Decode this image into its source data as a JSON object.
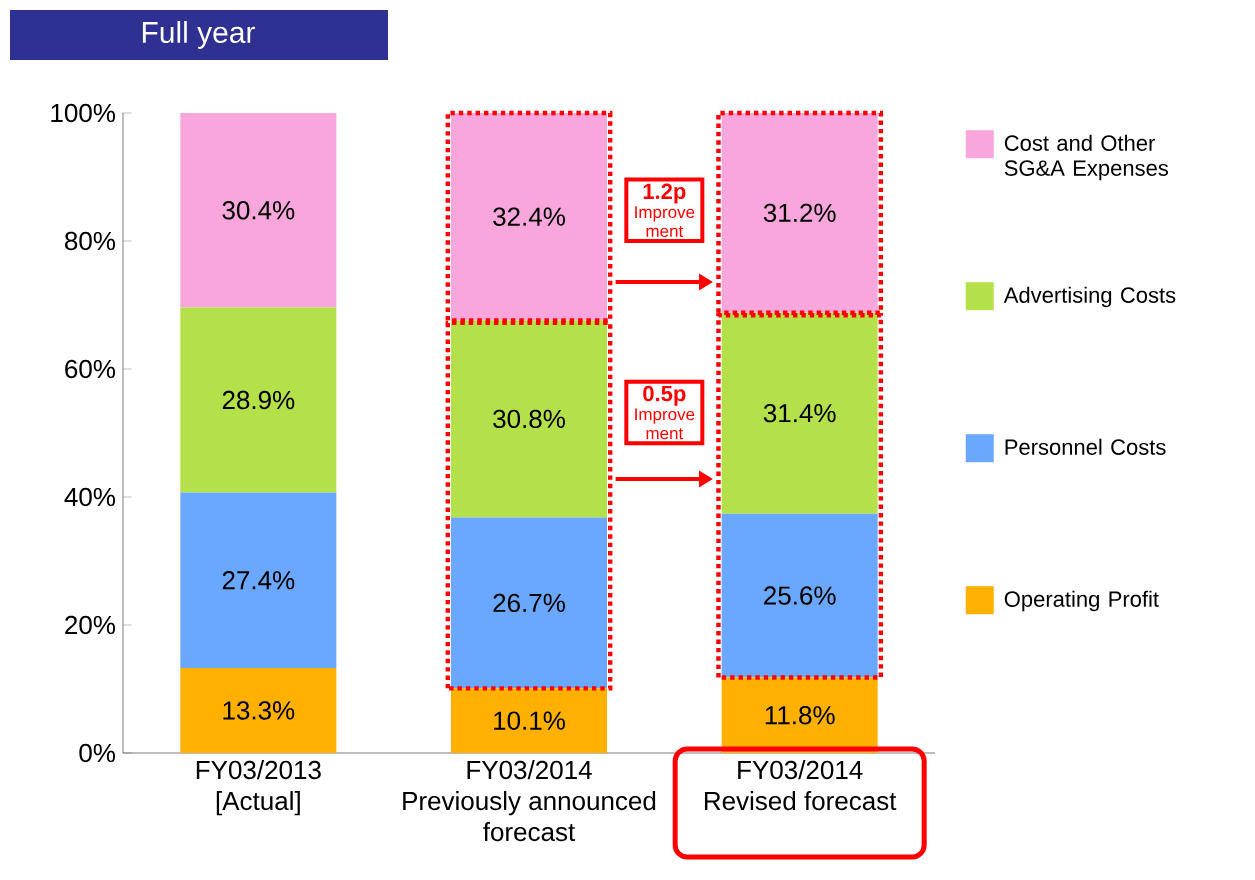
{
  "chart_data": {
    "type": "bar",
    "title": "Full year",
    "stacked": true,
    "categories": [
      "FY03/2013 [Actual]",
      "FY03/2014 Previously announced forecast",
      "FY03/2014 Revised forecast"
    ],
    "series": [
      {
        "name": "Operating Profit",
        "color": "#ffb000",
        "values": [
          13.3,
          10.1,
          11.8
        ],
        "value_labels": [
          "13.3%",
          "10.1%",
          "11.8%"
        ]
      },
      {
        "name": "Personnel Costs",
        "color": "#6aa8ff",
        "values": [
          27.4,
          26.7,
          25.6
        ],
        "value_labels": [
          "27.4%",
          "26.7%",
          "25.6%"
        ]
      },
      {
        "name": "Advertising Costs",
        "color": "#b4e04a",
        "values": [
          28.9,
          30.8,
          31.4
        ],
        "value_labels": [
          "28.9%",
          "30.8%",
          "31.4%"
        ]
      },
      {
        "name": "Cost and Other SG&A Expenses",
        "color": "#f9a6dc",
        "values": [
          30.4,
          32.4,
          31.2
        ],
        "value_labels": [
          "30.4%",
          "32.4%",
          "31.2%"
        ]
      }
    ],
    "ylim": [
      0,
      100
    ],
    "yticks": [
      {
        "value": 0,
        "label": "0%"
      },
      {
        "value": 20,
        "label": "20%"
      },
      {
        "value": 40,
        "label": "40%"
      },
      {
        "value": 60,
        "label": "60%"
      },
      {
        "value": 80,
        "label": "80%"
      },
      {
        "value": 100,
        "label": "100%"
      }
    ],
    "legend": "right",
    "annotations": [
      "1.2p",
      "Improve ment",
      "0.5p",
      "Improve ment"
    ]
  }
}
